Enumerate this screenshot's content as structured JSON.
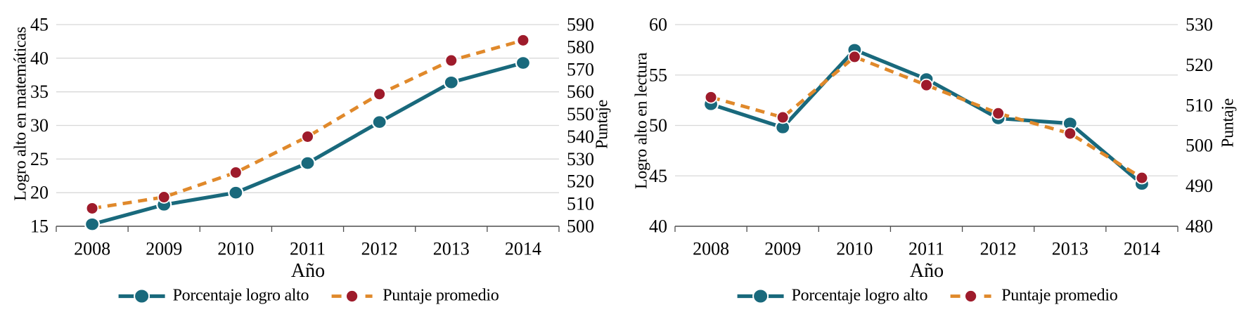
{
  "colors": {
    "teal": "#19697c",
    "orange": "#e0892b",
    "dark_red": "#9e1b2b",
    "gridline": "#d8d8d8",
    "axis_line": "#4d4d4d",
    "text": "#000000",
    "background": "#ffffff"
  },
  "legend": {
    "pct_label": "Porcentaje logro alto",
    "score_label": "Puntaje promedio"
  },
  "chart_data": [
    {
      "type": "line",
      "title": "",
      "xlabel": "Año",
      "ylabel_left": "Logro alto en matemáticas",
      "ylabel_right": "Puntaje",
      "categories": [
        "2008",
        "2009",
        "2010",
        "2011",
        "2012",
        "2013",
        "2014"
      ],
      "left_axis": {
        "min": 15,
        "max": 45,
        "ticks": [
          45,
          40,
          35,
          30,
          25,
          20,
          15
        ]
      },
      "right_axis": {
        "min": 500,
        "max": 590,
        "ticks": [
          590,
          580,
          570,
          560,
          550,
          540,
          530,
          520,
          510,
          500
        ]
      },
      "grid": "horizontal",
      "legend_position": "bottom",
      "series": [
        {
          "name": "Porcentaje logro alto",
          "axis": "left",
          "line": "solid",
          "values": [
            15.3,
            18.2,
            20.0,
            24.4,
            30.5,
            36.4,
            39.3
          ]
        },
        {
          "name": "Puntaje promedio",
          "axis": "right",
          "line": "dashed",
          "values": [
            508,
            513,
            524,
            540,
            559,
            574,
            583
          ]
        }
      ]
    },
    {
      "type": "line",
      "title": "",
      "xlabel": "Año",
      "ylabel_left": "Logro alto en lectura",
      "ylabel_right": "Puntaje",
      "categories": [
        "2008",
        "2009",
        "2010",
        "2011",
        "2012",
        "2013",
        "2014"
      ],
      "left_axis": {
        "min": 40,
        "max": 60,
        "ticks": [
          60,
          55,
          50,
          45,
          40
        ]
      },
      "right_axis": {
        "min": 480,
        "max": 530,
        "ticks": [
          530,
          520,
          510,
          500,
          490,
          480
        ]
      },
      "grid": "horizontal",
      "legend_position": "bottom",
      "series": [
        {
          "name": "Porcentaje logro alto",
          "axis": "left",
          "line": "solid",
          "values": [
            52.1,
            49.8,
            57.5,
            54.6,
            50.7,
            50.2,
            44.2
          ]
        },
        {
          "name": "Puntaje promedio",
          "axis": "right",
          "line": "dashed",
          "values": [
            512,
            507,
            522,
            515,
            508,
            503,
            492
          ]
        }
      ]
    }
  ]
}
